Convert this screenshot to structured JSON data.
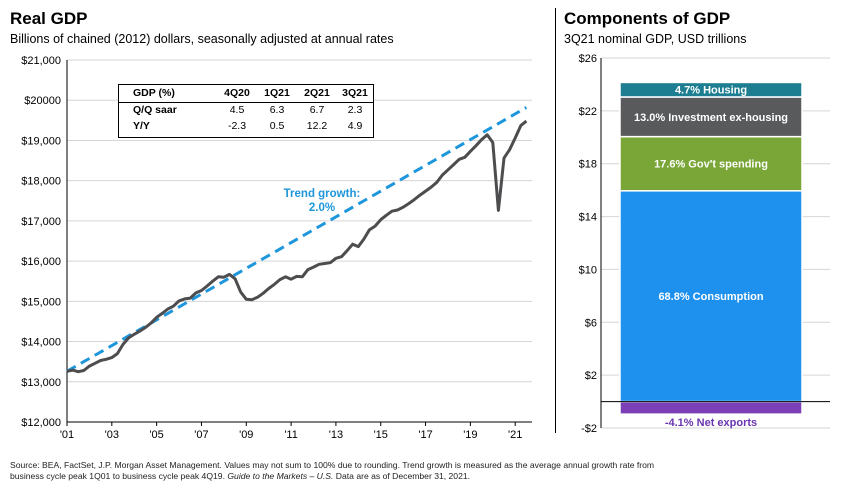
{
  "left_panel": {
    "title": "Real GDP",
    "subtitle": "Billions of chained (2012) dollars, seasonally adjusted at annual rates",
    "table": {
      "header": [
        "GDP (%)",
        "4Q20",
        "1Q21",
        "2Q21",
        "3Q21"
      ],
      "rows": [
        {
          "label": "Q/Q saar",
          "values": [
            "4.5",
            "6.3",
            "6.7",
            "2.3"
          ]
        },
        {
          "label": "Y/Y",
          "values": [
            "-2.3",
            "0.5",
            "12.2",
            "4.9"
          ]
        }
      ]
    },
    "trend_label_line1": "Trend growth:",
    "trend_label_line2": "2.0%"
  },
  "right_panel": {
    "title": "Components of GDP",
    "subtitle": "3Q21 nominal GDP, USD trillions"
  },
  "footer": {
    "text1": "Source: BEA, FactSet, J.P. Morgan Asset Management. Values may not sum to 100% due to rounding. Trend growth is measured as the average annual growth rate from",
    "text2a": "business cycle peak 1Q01 to business cycle peak 4Q19. ",
    "text2b": "Guide to the Markets – U.S.",
    "text2c": " Data are as of December 31, 2021."
  },
  "colors": {
    "gdp_line": "#4d4d4f",
    "trend_line": "#1e96dc",
    "housing": "#1d7e91",
    "investment": "#595a5c",
    "government": "#79a637",
    "consumption": "#1e90ee",
    "net_exports": "#7b3fb6",
    "net_exports_label": "#6a35b0"
  },
  "chart_data": [
    {
      "type": "line",
      "title": "Real GDP",
      "ylim": [
        12000,
        21000
      ],
      "xlim": [
        2001.0,
        2021.75
      ],
      "x_tick_labels": [
        "'01",
        "'03",
        "'05",
        "'07",
        "'09",
        "'11",
        "'13",
        "'15",
        "'17",
        "'19",
        "'21"
      ],
      "x_tick_values": [
        2001,
        2003,
        2005,
        2007,
        2009,
        2011,
        2013,
        2015,
        2017,
        2019,
        2021
      ],
      "y_tick_labels": [
        "$12,000",
        "$13,000",
        "$14,000",
        "$15,000",
        "$16,000",
        "$17,000",
        "$18,000",
        "$19,000",
        "$20000",
        "$21,000"
      ],
      "y_tick_values": [
        12000,
        13000,
        14000,
        15000,
        16000,
        17000,
        18000,
        19000,
        20000,
        21000
      ],
      "series": [
        {
          "style": "solid",
          "points": [
            [
              2001.0,
              13260
            ],
            [
              2001.25,
              13290
            ],
            [
              2001.5,
              13250
            ],
            [
              2001.75,
              13280
            ],
            [
              2002.0,
              13390
            ],
            [
              2002.25,
              13460
            ],
            [
              2002.5,
              13530
            ],
            [
              2002.75,
              13560
            ],
            [
              2003.0,
              13600
            ],
            [
              2003.25,
              13700
            ],
            [
              2003.5,
              13930
            ],
            [
              2003.75,
              14090
            ],
            [
              2004.0,
              14180
            ],
            [
              2004.25,
              14260
            ],
            [
              2004.5,
              14350
            ],
            [
              2004.75,
              14460
            ],
            [
              2005.0,
              14600
            ],
            [
              2005.25,
              14700
            ],
            [
              2005.5,
              14810
            ],
            [
              2005.75,
              14880
            ],
            [
              2006.0,
              15010
            ],
            [
              2006.25,
              15060
            ],
            [
              2006.5,
              15080
            ],
            [
              2006.75,
              15210
            ],
            [
              2007.0,
              15270
            ],
            [
              2007.25,
              15380
            ],
            [
              2007.5,
              15500
            ],
            [
              2007.75,
              15610
            ],
            [
              2008.0,
              15600
            ],
            [
              2008.25,
              15670
            ],
            [
              2008.5,
              15560
            ],
            [
              2008.75,
              15230
            ],
            [
              2009.0,
              15050
            ],
            [
              2009.25,
              15040
            ],
            [
              2009.5,
              15100
            ],
            [
              2009.75,
              15200
            ],
            [
              2010.0,
              15320
            ],
            [
              2010.25,
              15420
            ],
            [
              2010.5,
              15540
            ],
            [
              2010.75,
              15610
            ],
            [
              2011.0,
              15550
            ],
            [
              2011.25,
              15620
            ],
            [
              2011.5,
              15610
            ],
            [
              2011.75,
              15790
            ],
            [
              2012.0,
              15850
            ],
            [
              2012.25,
              15920
            ],
            [
              2012.5,
              15940
            ],
            [
              2012.75,
              15960
            ],
            [
              2013.0,
              16070
            ],
            [
              2013.25,
              16110
            ],
            [
              2013.5,
              16260
            ],
            [
              2013.75,
              16420
            ],
            [
              2014.0,
              16360
            ],
            [
              2014.25,
              16550
            ],
            [
              2014.5,
              16780
            ],
            [
              2014.75,
              16870
            ],
            [
              2015.0,
              17030
            ],
            [
              2015.25,
              17140
            ],
            [
              2015.5,
              17240
            ],
            [
              2015.75,
              17270
            ],
            [
              2016.0,
              17340
            ],
            [
              2016.25,
              17430
            ],
            [
              2016.5,
              17530
            ],
            [
              2016.75,
              17640
            ],
            [
              2017.0,
              17740
            ],
            [
              2017.25,
              17840
            ],
            [
              2017.5,
              17960
            ],
            [
              2017.75,
              18140
            ],
            [
              2018.0,
              18270
            ],
            [
              2018.25,
              18400
            ],
            [
              2018.5,
              18530
            ],
            [
              2018.75,
              18580
            ],
            [
              2019.0,
              18730
            ],
            [
              2019.25,
              18870
            ],
            [
              2019.5,
              19020
            ],
            [
              2019.75,
              19140
            ],
            [
              2020.0,
              18950
            ],
            [
              2020.25,
              17260
            ],
            [
              2020.5,
              18560
            ],
            [
              2020.75,
              18770
            ],
            [
              2021.0,
              19060
            ],
            [
              2021.25,
              19370
            ],
            [
              2021.5,
              19480
            ]
          ]
        },
        {
          "style": "dashed",
          "points": [
            [
              2001.0,
              13260
            ],
            [
              2021.5,
              19820
            ]
          ]
        }
      ]
    },
    {
      "type": "bar",
      "stacked": true,
      "title": "Components of GDP",
      "ylim": [
        -2,
        26
      ],
      "y_tick_labels": [
        "$26",
        "$22",
        "$18",
        "$14",
        "$10",
        "$6",
        "$2",
        "-$2"
      ],
      "y_tick_values": [
        26,
        22,
        18,
        14,
        10,
        6,
        2,
        -2
      ],
      "series": [
        {
          "name": "Net exports",
          "label": "-4.1% Net exports",
          "bottom": -0.95,
          "top": 0.0
        },
        {
          "name": "Consumption",
          "label": "68.8% Consumption",
          "bottom": 0.0,
          "top": 15.95
        },
        {
          "name": "Gov't spending",
          "label": "17.6% Gov't spending",
          "bottom": 15.95,
          "top": 20.05
        },
        {
          "name": "Investment ex-housing",
          "label": "13.0% Investment ex-housing",
          "bottom": 20.05,
          "top": 23.05
        },
        {
          "name": "Housing",
          "label": "4.7% Housing",
          "bottom": 23.05,
          "top": 24.15
        }
      ]
    }
  ]
}
